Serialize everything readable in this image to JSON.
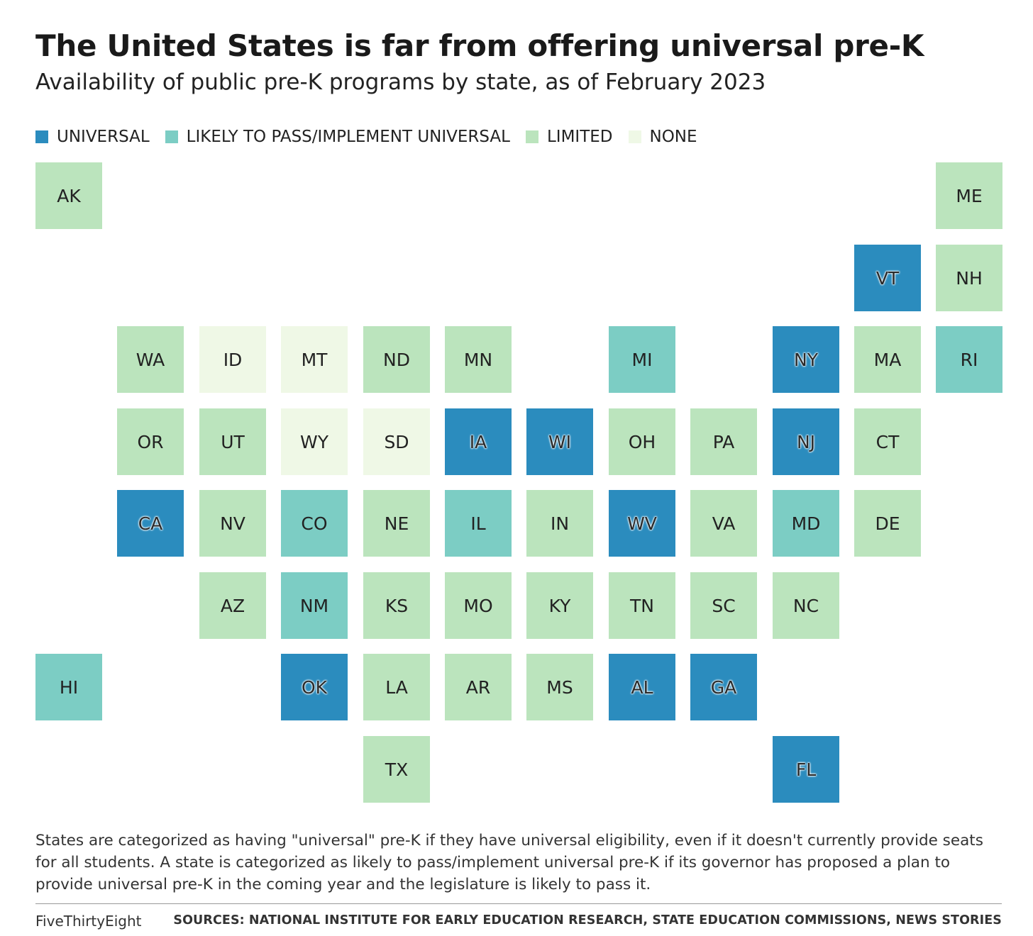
{
  "header": {
    "title": "The United States is far from offering universal pre-K",
    "subtitle": "Availability of public pre-K programs by state, as of February 2023"
  },
  "colors": {
    "universal": "#2b8cbe",
    "likely": "#7ccdc4",
    "limited": "#bbe4bd",
    "none": "#eff8e6"
  },
  "legend": [
    {
      "key": "universal",
      "label": "UNIVERSAL"
    },
    {
      "key": "likely",
      "label": "LIKELY TO PASS/IMPLEMENT UNIVERSAL"
    },
    {
      "key": "limited",
      "label": "LIMITED"
    },
    {
      "key": "none",
      "label": "NONE"
    }
  ],
  "states": [
    {
      "code": "AK",
      "row": 0,
      "col": 0,
      "status": "limited"
    },
    {
      "code": "ME",
      "row": 0,
      "col": 11,
      "status": "limited"
    },
    {
      "code": "VT",
      "row": 1,
      "col": 10,
      "status": "universal"
    },
    {
      "code": "NH",
      "row": 1,
      "col": 11,
      "status": "limited"
    },
    {
      "code": "WA",
      "row": 2,
      "col": 1,
      "status": "limited"
    },
    {
      "code": "ID",
      "row": 2,
      "col": 2,
      "status": "none"
    },
    {
      "code": "MT",
      "row": 2,
      "col": 3,
      "status": "none"
    },
    {
      "code": "ND",
      "row": 2,
      "col": 4,
      "status": "limited"
    },
    {
      "code": "MN",
      "row": 2,
      "col": 5,
      "status": "limited"
    },
    {
      "code": "MI",
      "row": 2,
      "col": 7,
      "status": "likely"
    },
    {
      "code": "NY",
      "row": 2,
      "col": 9,
      "status": "universal"
    },
    {
      "code": "MA",
      "row": 2,
      "col": 10,
      "status": "limited"
    },
    {
      "code": "RI",
      "row": 2,
      "col": 11,
      "status": "likely"
    },
    {
      "code": "OR",
      "row": 3,
      "col": 1,
      "status": "limited"
    },
    {
      "code": "UT",
      "row": 3,
      "col": 2,
      "status": "limited"
    },
    {
      "code": "WY",
      "row": 3,
      "col": 3,
      "status": "none"
    },
    {
      "code": "SD",
      "row": 3,
      "col": 4,
      "status": "none"
    },
    {
      "code": "IA",
      "row": 3,
      "col": 5,
      "status": "universal"
    },
    {
      "code": "WI",
      "row": 3,
      "col": 6,
      "status": "universal"
    },
    {
      "code": "OH",
      "row": 3,
      "col": 7,
      "status": "limited"
    },
    {
      "code": "PA",
      "row": 3,
      "col": 8,
      "status": "limited"
    },
    {
      "code": "NJ",
      "row": 3,
      "col": 9,
      "status": "universal"
    },
    {
      "code": "CT",
      "row": 3,
      "col": 10,
      "status": "limited"
    },
    {
      "code": "CA",
      "row": 4,
      "col": 1,
      "status": "universal"
    },
    {
      "code": "NV",
      "row": 4,
      "col": 2,
      "status": "limited"
    },
    {
      "code": "CO",
      "row": 4,
      "col": 3,
      "status": "likely"
    },
    {
      "code": "NE",
      "row": 4,
      "col": 4,
      "status": "limited"
    },
    {
      "code": "IL",
      "row": 4,
      "col": 5,
      "status": "likely"
    },
    {
      "code": "IN",
      "row": 4,
      "col": 6,
      "status": "limited"
    },
    {
      "code": "WV",
      "row": 4,
      "col": 7,
      "status": "universal"
    },
    {
      "code": "VA",
      "row": 4,
      "col": 8,
      "status": "limited"
    },
    {
      "code": "MD",
      "row": 4,
      "col": 9,
      "status": "likely"
    },
    {
      "code": "DE",
      "row": 4,
      "col": 10,
      "status": "limited"
    },
    {
      "code": "AZ",
      "row": 5,
      "col": 2,
      "status": "limited"
    },
    {
      "code": "NM",
      "row": 5,
      "col": 3,
      "status": "likely"
    },
    {
      "code": "KS",
      "row": 5,
      "col": 4,
      "status": "limited"
    },
    {
      "code": "MO",
      "row": 5,
      "col": 5,
      "status": "limited"
    },
    {
      "code": "KY",
      "row": 5,
      "col": 6,
      "status": "limited"
    },
    {
      "code": "TN",
      "row": 5,
      "col": 7,
      "status": "limited"
    },
    {
      "code": "SC",
      "row": 5,
      "col": 8,
      "status": "limited"
    },
    {
      "code": "NC",
      "row": 5,
      "col": 9,
      "status": "limited"
    },
    {
      "code": "HI",
      "row": 6,
      "col": 0,
      "status": "likely"
    },
    {
      "code": "OK",
      "row": 6,
      "col": 3,
      "status": "universal"
    },
    {
      "code": "LA",
      "row": 6,
      "col": 4,
      "status": "limited"
    },
    {
      "code": "AR",
      "row": 6,
      "col": 5,
      "status": "limited"
    },
    {
      "code": "MS",
      "row": 6,
      "col": 6,
      "status": "limited"
    },
    {
      "code": "AL",
      "row": 6,
      "col": 7,
      "status": "universal"
    },
    {
      "code": "GA",
      "row": 6,
      "col": 8,
      "status": "universal"
    },
    {
      "code": "TX",
      "row": 7,
      "col": 4,
      "status": "limited"
    },
    {
      "code": "FL",
      "row": 7,
      "col": 9,
      "status": "universal"
    }
  ],
  "footnote": "States are categorized as having \"universal\" pre-K if they have universal eligibility, even if it doesn't currently provide seats for all students. A state is categorized as likely to pass/implement universal pre-K if its governor has proposed a plan to provide universal pre-K in the coming year and the legislature is likely to pass it.",
  "footer": {
    "brand": "FiveThirtyEight",
    "sources": "SOURCES: NATIONAL INSTITUTE FOR EARLY EDUCATION RESEARCH, STATE EDUCATION COMMISSIONS, NEWS STORIES"
  }
}
